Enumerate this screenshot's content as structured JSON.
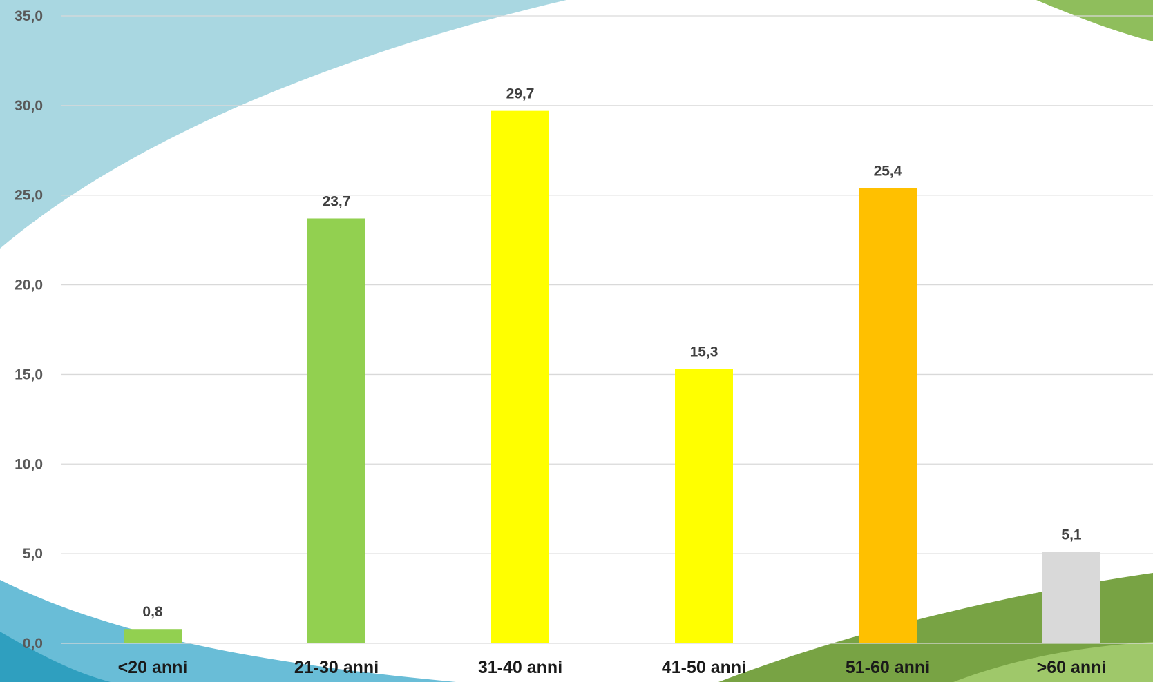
{
  "chart_data": {
    "type": "bar",
    "categories": [
      "<20 anni",
      "21-30 anni",
      "31-40 anni",
      "41-50 anni",
      "51-60 anni",
      ">60 anni"
    ],
    "values": [
      0.8,
      23.7,
      29.7,
      15.3,
      25.4,
      5.1
    ],
    "value_labels": [
      "0,8",
      "23,7",
      "29,7",
      "15,3",
      "25,4",
      "5,1"
    ],
    "bar_colors": [
      "#92d050",
      "#92d050",
      "#ffff00",
      "#ffff00",
      "#ffc000",
      "#d9d9d9"
    ],
    "yticks": [
      0,
      5,
      10,
      15,
      20,
      25,
      30,
      35
    ],
    "ytick_labels": [
      "0,0",
      "5,0",
      "10,0",
      "15,0",
      "20,0",
      "25,0",
      "30,0",
      "35,0"
    ],
    "ylim": [
      0,
      35
    ],
    "grid": true,
    "legend": "none",
    "title": "",
    "xlabel": "",
    "ylabel": ""
  },
  "background": {
    "accent_blue": "#a6d6e0",
    "accent_blue_dark": "#3fa9c9",
    "accent_green": "#8bbf5a",
    "accent_green_dark": "#76a043"
  }
}
